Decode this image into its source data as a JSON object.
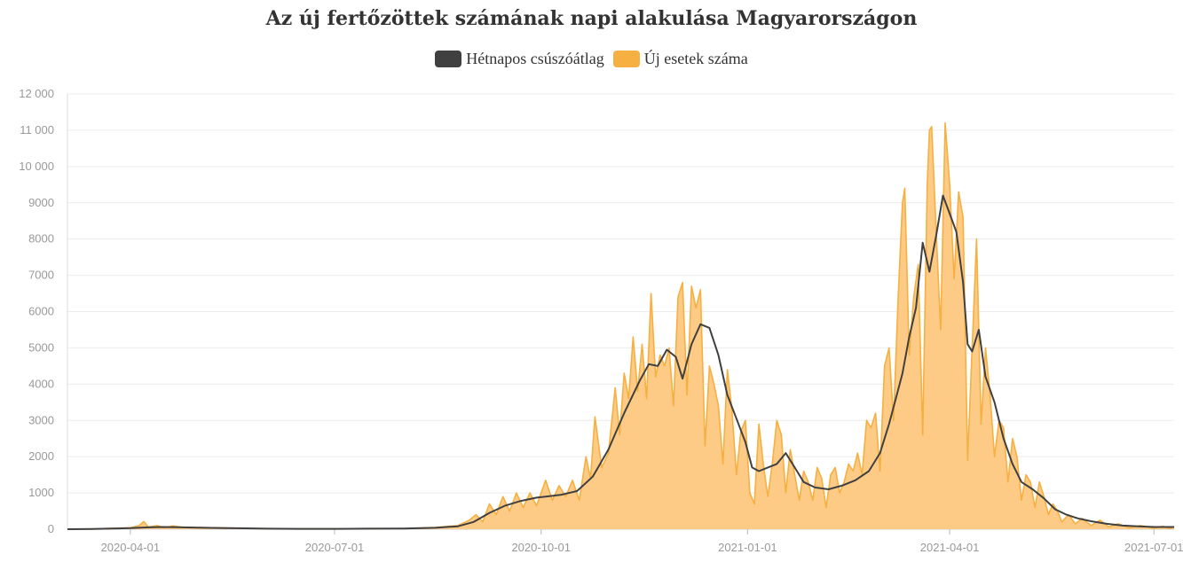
{
  "chart_data": {
    "type": "area",
    "title": "Az új fertőzöttek számának napi alakulása Magyarországon",
    "xlabel": "",
    "ylabel": "",
    "x_range": [
      "2020-03-04",
      "2021-07-10"
    ],
    "ylim": [
      0,
      12000
    ],
    "y_ticks": [
      {
        "value": 0,
        "label": "0"
      },
      {
        "value": 1000,
        "label": "1000"
      },
      {
        "value": 2000,
        "label": "2000"
      },
      {
        "value": 3000,
        "label": "3000"
      },
      {
        "value": 4000,
        "label": "4000"
      },
      {
        "value": 5000,
        "label": "5000"
      },
      {
        "value": 6000,
        "label": "6000"
      },
      {
        "value": 7000,
        "label": "7000"
      },
      {
        "value": 8000,
        "label": "8000"
      },
      {
        "value": 9000,
        "label": "9000"
      },
      {
        "value": 10000,
        "label": "10 000"
      },
      {
        "value": 11000,
        "label": "11 000"
      },
      {
        "value": 12000,
        "label": "12 000"
      }
    ],
    "x_ticks": [
      "2020-04-01",
      "2020-07-01",
      "2020-10-01",
      "2021-01-01",
      "2021-04-01",
      "2021-07-01"
    ],
    "grid": true,
    "legend_position": "top-center",
    "series": [
      {
        "name": "Hétnapos csúszóátlag",
        "type": "line",
        "color": "#404040",
        "points": [
          [
            "2020-03-04",
            0
          ],
          [
            "2020-03-15",
            5
          ],
          [
            "2020-03-25",
            20
          ],
          [
            "2020-04-01",
            30
          ],
          [
            "2020-04-08",
            50
          ],
          [
            "2020-04-15",
            60
          ],
          [
            "2020-04-22",
            55
          ],
          [
            "2020-05-01",
            45
          ],
          [
            "2020-05-15",
            30
          ],
          [
            "2020-06-01",
            15
          ],
          [
            "2020-06-15",
            10
          ],
          [
            "2020-07-01",
            10
          ],
          [
            "2020-07-15",
            15
          ],
          [
            "2020-08-01",
            20
          ],
          [
            "2020-08-15",
            40
          ],
          [
            "2020-08-25",
            80
          ],
          [
            "2020-09-01",
            200
          ],
          [
            "2020-09-08",
            450
          ],
          [
            "2020-09-15",
            650
          ],
          [
            "2020-09-22",
            780
          ],
          [
            "2020-09-29",
            870
          ],
          [
            "2020-10-03",
            900
          ],
          [
            "2020-10-10",
            950
          ],
          [
            "2020-10-17",
            1050
          ],
          [
            "2020-10-24",
            1450
          ],
          [
            "2020-10-31",
            2200
          ],
          [
            "2020-11-07",
            3200
          ],
          [
            "2020-11-14",
            4100
          ],
          [
            "2020-11-18",
            4550
          ],
          [
            "2020-11-22",
            4500
          ],
          [
            "2020-11-26",
            4950
          ],
          [
            "2020-11-30",
            4750
          ],
          [
            "2020-12-03",
            4150
          ],
          [
            "2020-12-07",
            5100
          ],
          [
            "2020-12-11",
            5650
          ],
          [
            "2020-12-15",
            5550
          ],
          [
            "2020-12-19",
            4800
          ],
          [
            "2020-12-23",
            3700
          ],
          [
            "2020-12-27",
            3050
          ],
          [
            "2020-12-31",
            2400
          ],
          [
            "2021-01-03",
            1700
          ],
          [
            "2021-01-06",
            1600
          ],
          [
            "2021-01-10",
            1700
          ],
          [
            "2021-01-14",
            1800
          ],
          [
            "2021-01-18",
            2100
          ],
          [
            "2021-01-22",
            1700
          ],
          [
            "2021-01-26",
            1300
          ],
          [
            "2021-01-31",
            1150
          ],
          [
            "2021-02-06",
            1100
          ],
          [
            "2021-02-12",
            1200
          ],
          [
            "2021-02-18",
            1350
          ],
          [
            "2021-02-24",
            1600
          ],
          [
            "2021-03-01",
            2100
          ],
          [
            "2021-03-05",
            2900
          ],
          [
            "2021-03-08",
            3600
          ],
          [
            "2021-03-11",
            4300
          ],
          [
            "2021-03-14",
            5300
          ],
          [
            "2021-03-17",
            6100
          ],
          [
            "2021-03-20",
            7900
          ],
          [
            "2021-03-23",
            7100
          ],
          [
            "2021-03-26",
            8100
          ],
          [
            "2021-03-29",
            9200
          ],
          [
            "2021-04-01",
            8700
          ],
          [
            "2021-04-04",
            8200
          ],
          [
            "2021-04-07",
            6800
          ],
          [
            "2021-04-09",
            5100
          ],
          [
            "2021-04-11",
            4900
          ],
          [
            "2021-04-14",
            5500
          ],
          [
            "2021-04-17",
            4200
          ],
          [
            "2021-04-21",
            3500
          ],
          [
            "2021-04-25",
            2500
          ],
          [
            "2021-04-29",
            1800
          ],
          [
            "2021-05-03",
            1300
          ],
          [
            "2021-05-08",
            1100
          ],
          [
            "2021-05-13",
            850
          ],
          [
            "2021-05-18",
            550
          ],
          [
            "2021-05-23",
            400
          ],
          [
            "2021-05-28",
            300
          ],
          [
            "2021-06-03",
            220
          ],
          [
            "2021-06-10",
            150
          ],
          [
            "2021-06-17",
            100
          ],
          [
            "2021-06-24",
            80
          ],
          [
            "2021-07-01",
            60
          ],
          [
            "2021-07-10",
            60
          ]
        ]
      },
      {
        "name": "Új esetek száma",
        "type": "area",
        "color": "#f5b041",
        "points": [
          [
            "2020-03-04",
            0
          ],
          [
            "2020-03-15",
            5
          ],
          [
            "2020-03-25",
            30
          ],
          [
            "2020-04-01",
            40
          ],
          [
            "2020-04-05",
            100
          ],
          [
            "2020-04-07",
            210
          ],
          [
            "2020-04-09",
            60
          ],
          [
            "2020-04-13",
            100
          ],
          [
            "2020-04-16",
            40
          ],
          [
            "2020-04-20",
            90
          ],
          [
            "2020-04-25",
            45
          ],
          [
            "2020-05-01",
            50
          ],
          [
            "2020-05-15",
            30
          ],
          [
            "2020-06-01",
            15
          ],
          [
            "2020-06-15",
            10
          ],
          [
            "2020-07-01",
            10
          ],
          [
            "2020-07-15",
            15
          ],
          [
            "2020-08-01",
            20
          ],
          [
            "2020-08-15",
            50
          ],
          [
            "2020-08-25",
            100
          ],
          [
            "2020-08-30",
            250
          ],
          [
            "2020-09-02",
            400
          ],
          [
            "2020-09-05",
            200
          ],
          [
            "2020-09-08",
            700
          ],
          [
            "2020-09-11",
            400
          ],
          [
            "2020-09-14",
            900
          ],
          [
            "2020-09-17",
            500
          ],
          [
            "2020-09-20",
            1000
          ],
          [
            "2020-09-23",
            600
          ],
          [
            "2020-09-26",
            1000
          ],
          [
            "2020-09-29",
            650
          ],
          [
            "2020-10-03",
            1350
          ],
          [
            "2020-10-06",
            800
          ],
          [
            "2020-10-09",
            1200
          ],
          [
            "2020-10-12",
            900
          ],
          [
            "2020-10-15",
            1350
          ],
          [
            "2020-10-18",
            800
          ],
          [
            "2020-10-21",
            2000
          ],
          [
            "2020-10-23",
            1400
          ],
          [
            "2020-10-25",
            3100
          ],
          [
            "2020-10-28",
            1700
          ],
          [
            "2020-10-31",
            2100
          ],
          [
            "2020-11-03",
            3900
          ],
          [
            "2020-11-05",
            2600
          ],
          [
            "2020-11-07",
            4300
          ],
          [
            "2020-11-09",
            3600
          ],
          [
            "2020-11-11",
            5300
          ],
          [
            "2020-11-13",
            3800
          ],
          [
            "2020-11-15",
            5100
          ],
          [
            "2020-11-17",
            3600
          ],
          [
            "2020-11-19",
            6500
          ],
          [
            "2020-11-21",
            4200
          ],
          [
            "2020-11-23",
            4800
          ],
          [
            "2020-11-25",
            4500
          ],
          [
            "2020-11-27",
            5000
          ],
          [
            "2020-11-29",
            3400
          ],
          [
            "2020-12-01",
            6400
          ],
          [
            "2020-12-03",
            6800
          ],
          [
            "2020-12-05",
            3700
          ],
          [
            "2020-12-07",
            6700
          ],
          [
            "2020-12-09",
            6100
          ],
          [
            "2020-12-11",
            6600
          ],
          [
            "2020-12-13",
            2300
          ],
          [
            "2020-12-15",
            4500
          ],
          [
            "2020-12-17",
            4000
          ],
          [
            "2020-12-19",
            3400
          ],
          [
            "2020-12-21",
            1800
          ],
          [
            "2020-12-23",
            4400
          ],
          [
            "2020-12-25",
            3300
          ],
          [
            "2020-12-27",
            1500
          ],
          [
            "2020-12-29",
            2700
          ],
          [
            "2020-12-31",
            3000
          ],
          [
            "2021-01-02",
            1000
          ],
          [
            "2021-01-04",
            700
          ],
          [
            "2021-01-06",
            2900
          ],
          [
            "2021-01-08",
            1800
          ],
          [
            "2021-01-10",
            900
          ],
          [
            "2021-01-12",
            1800
          ],
          [
            "2021-01-14",
            3000
          ],
          [
            "2021-01-16",
            2600
          ],
          [
            "2021-01-18",
            1000
          ],
          [
            "2021-01-20",
            2200
          ],
          [
            "2021-01-22",
            1500
          ],
          [
            "2021-01-24",
            800
          ],
          [
            "2021-01-26",
            1600
          ],
          [
            "2021-01-28",
            1300
          ],
          [
            "2021-01-30",
            800
          ],
          [
            "2021-02-01",
            1700
          ],
          [
            "2021-02-03",
            1400
          ],
          [
            "2021-02-05",
            600
          ],
          [
            "2021-02-07",
            1500
          ],
          [
            "2021-02-09",
            1700
          ],
          [
            "2021-02-11",
            1000
          ],
          [
            "2021-02-13",
            1300
          ],
          [
            "2021-02-15",
            1800
          ],
          [
            "2021-02-17",
            1600
          ],
          [
            "2021-02-19",
            2100
          ],
          [
            "2021-02-21",
            1500
          ],
          [
            "2021-02-23",
            3000
          ],
          [
            "2021-02-25",
            2800
          ],
          [
            "2021-02-27",
            3200
          ],
          [
            "2021-03-01",
            1600
          ],
          [
            "2021-03-03",
            4500
          ],
          [
            "2021-03-05",
            5000
          ],
          [
            "2021-03-07",
            3000
          ],
          [
            "2021-03-09",
            6300
          ],
          [
            "2021-03-11",
            9000
          ],
          [
            "2021-03-12",
            9400
          ],
          [
            "2021-03-14",
            4800
          ],
          [
            "2021-03-16",
            6400
          ],
          [
            "2021-03-18",
            7300
          ],
          [
            "2021-03-20",
            2600
          ],
          [
            "2021-03-22",
            9500
          ],
          [
            "2021-03-23",
            11000
          ],
          [
            "2021-03-24",
            11100
          ],
          [
            "2021-03-26",
            8200
          ],
          [
            "2021-03-28",
            5500
          ],
          [
            "2021-03-30",
            11200
          ],
          [
            "2021-04-01",
            9500
          ],
          [
            "2021-04-03",
            6900
          ],
          [
            "2021-04-05",
            9300
          ],
          [
            "2021-04-07",
            8600
          ],
          [
            "2021-04-09",
            1900
          ],
          [
            "2021-04-11",
            5000
          ],
          [
            "2021-04-13",
            8000
          ],
          [
            "2021-04-15",
            2900
          ],
          [
            "2021-04-17",
            5000
          ],
          [
            "2021-04-19",
            3700
          ],
          [
            "2021-04-21",
            2000
          ],
          [
            "2021-04-23",
            3000
          ],
          [
            "2021-04-25",
            2800
          ],
          [
            "2021-04-27",
            1300
          ],
          [
            "2021-04-29",
            2500
          ],
          [
            "2021-05-01",
            2000
          ],
          [
            "2021-05-03",
            800
          ],
          [
            "2021-05-05",
            1500
          ],
          [
            "2021-05-07",
            1300
          ],
          [
            "2021-05-09",
            600
          ],
          [
            "2021-05-11",
            1300
          ],
          [
            "2021-05-13",
            900
          ],
          [
            "2021-05-15",
            400
          ],
          [
            "2021-05-17",
            700
          ],
          [
            "2021-05-19",
            500
          ],
          [
            "2021-05-21",
            200
          ],
          [
            "2021-05-24",
            400
          ],
          [
            "2021-05-27",
            150
          ],
          [
            "2021-05-30",
            300
          ],
          [
            "2021-06-03",
            100
          ],
          [
            "2021-06-07",
            250
          ],
          [
            "2021-06-11",
            60
          ],
          [
            "2021-06-15",
            150
          ],
          [
            "2021-06-20",
            40
          ],
          [
            "2021-06-25",
            100
          ],
          [
            "2021-07-01",
            30
          ],
          [
            "2021-07-05",
            80
          ],
          [
            "2021-07-08",
            20
          ],
          [
            "2021-07-10",
            60
          ]
        ]
      }
    ]
  }
}
